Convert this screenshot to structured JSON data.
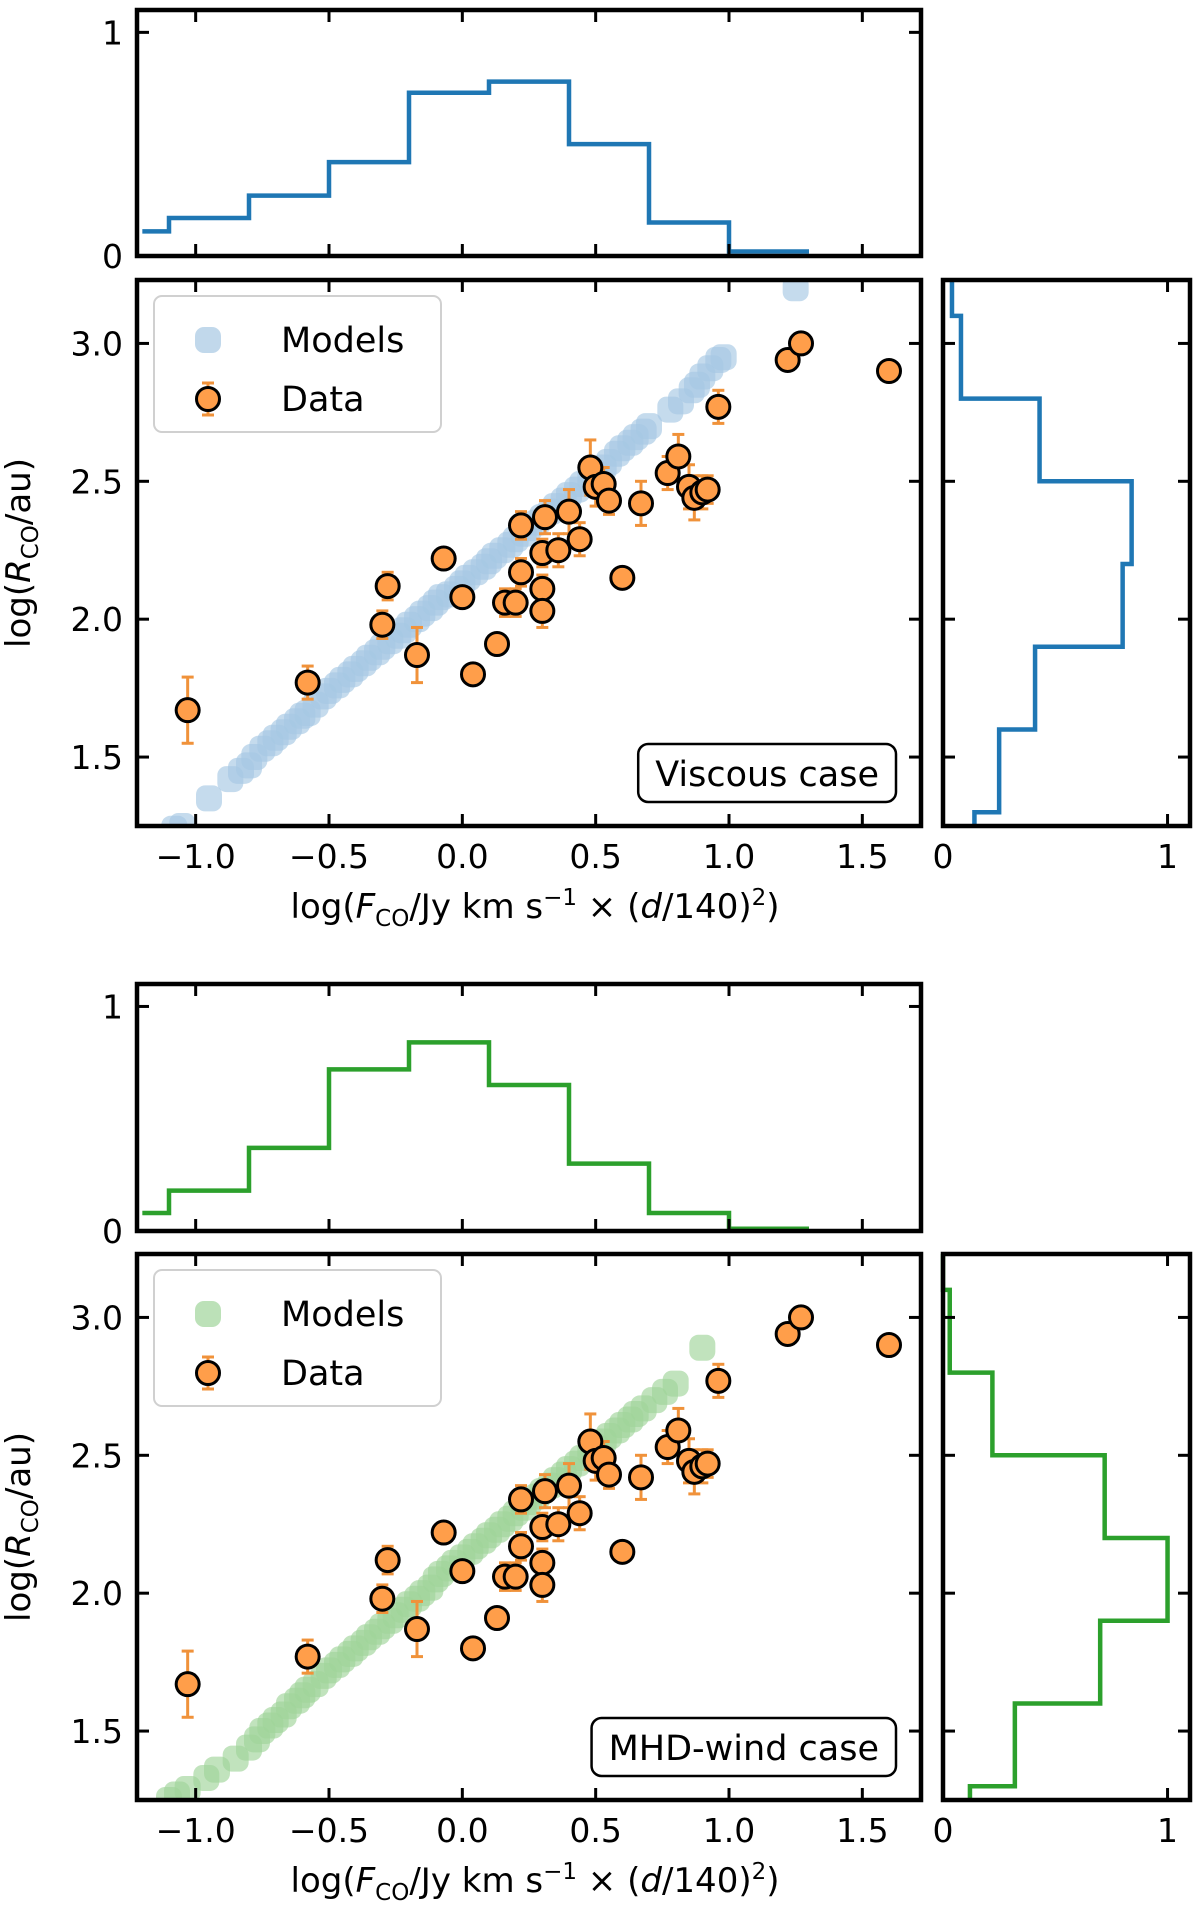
{
  "figure": {
    "xlabel": "log(F_CO/Jy km s^-1 × (d/140)^2)",
    "ylabel": "log(R_CO/au)",
    "x_ticks": [
      "−1.0",
      "−0.5",
      "0.0",
      "0.5",
      "1.0",
      "1.5"
    ],
    "y_ticks": [
      "1.5",
      "2.0",
      "2.5",
      "3.0"
    ],
    "hist_x_ticks": [
      "0",
      "1"
    ],
    "hist_y_ticks": [
      "0",
      "1"
    ]
  },
  "chart_data": [
    {
      "type": "scatter",
      "panel": "viscous",
      "title": "Viscous case",
      "color": "#1f77b4",
      "models_color": "#a6c8e3",
      "data_color": "#ff9e4a",
      "errbar_color": "#f0923a",
      "legend": [
        "Models",
        "Data"
      ],
      "xlim": [
        -1.22,
        1.72
      ],
      "ylim": [
        1.25,
        3.23
      ],
      "models": {
        "x": [
          -1.08,
          -1.05,
          -0.95,
          -0.87,
          -0.83,
          -0.8,
          -0.78,
          -0.75,
          -0.72,
          -0.7,
          -0.67,
          -0.65,
          -0.62,
          -0.6,
          -0.58,
          -0.55,
          -0.52,
          -0.5,
          -0.47,
          -0.45,
          -0.42,
          -0.4,
          -0.37,
          -0.35,
          -0.32,
          -0.3,
          -0.27,
          -0.24,
          -0.22,
          -0.2,
          -0.17,
          -0.15,
          -0.12,
          -0.1,
          -0.08,
          -0.05,
          -0.02,
          0.0,
          0.02,
          0.05,
          0.08,
          0.1,
          0.12,
          0.15,
          0.18,
          0.2,
          0.23,
          0.25,
          0.28,
          0.3,
          0.33,
          0.35,
          0.38,
          0.4,
          0.43,
          0.45,
          0.48,
          0.5,
          0.53,
          0.55,
          0.58,
          0.6,
          0.63,
          0.65,
          0.68,
          0.7,
          0.78,
          0.82,
          0.86,
          0.88,
          0.9,
          0.93,
          0.96,
          0.98,
          1.25
        ],
        "y": [
          1.24,
          1.25,
          1.35,
          1.42,
          1.45,
          1.47,
          1.5,
          1.53,
          1.55,
          1.57,
          1.59,
          1.61,
          1.63,
          1.65,
          1.66,
          1.69,
          1.72,
          1.74,
          1.76,
          1.78,
          1.8,
          1.82,
          1.84,
          1.86,
          1.88,
          1.9,
          1.92,
          1.94,
          1.96,
          1.98,
          2.0,
          2.02,
          2.04,
          2.06,
          2.08,
          2.09,
          2.11,
          2.13,
          2.15,
          2.17,
          2.19,
          2.21,
          2.23,
          2.25,
          2.27,
          2.29,
          2.31,
          2.33,
          2.35,
          2.37,
          2.39,
          2.41,
          2.43,
          2.45,
          2.47,
          2.49,
          2.51,
          2.53,
          2.55,
          2.57,
          2.6,
          2.62,
          2.64,
          2.66,
          2.68,
          2.7,
          2.76,
          2.79,
          2.83,
          2.85,
          2.88,
          2.91,
          2.94,
          2.95,
          3.2
        ]
      },
      "data": {
        "x": [
          -1.03,
          -0.58,
          -0.3,
          -0.28,
          -0.17,
          -0.07,
          0.04,
          0.0,
          0.13,
          0.16,
          0.2,
          0.22,
          0.22,
          0.3,
          0.3,
          0.3,
          0.31,
          0.36,
          0.4,
          0.44,
          0.48,
          0.5,
          0.53,
          0.55,
          0.6,
          0.67,
          0.77,
          0.81,
          0.85,
          0.87,
          0.9,
          0.92,
          0.96,
          1.22,
          1.27,
          1.6
        ],
        "y": [
          1.67,
          1.77,
          1.98,
          2.12,
          1.87,
          2.22,
          1.8,
          2.08,
          1.91,
          2.06,
          2.06,
          2.17,
          2.34,
          2.11,
          2.03,
          2.24,
          2.37,
          2.25,
          2.39,
          2.29,
          2.55,
          2.48,
          2.49,
          2.43,
          2.15,
          2.42,
          2.53,
          2.59,
          2.48,
          2.44,
          2.46,
          2.47,
          2.77,
          2.94,
          3.0,
          2.9
        ],
        "yerr": [
          0.12,
          0.06,
          0.05,
          0.05,
          0.1,
          0.03,
          0.03,
          0.03,
          0.03,
          0.05,
          0.05,
          0.05,
          0.05,
          0.05,
          0.06,
          0.05,
          0.06,
          0.06,
          0.08,
          0.06,
          0.1,
          0.07,
          0.06,
          0.05,
          0.03,
          0.08,
          0.06,
          0.08,
          0.08,
          0.08,
          0.06,
          0.05,
          0.06,
          0.0,
          0.0,
          0.0
        ]
      },
      "hist_x": {
        "bin_edges": [
          -1.2,
          -1.1,
          -0.8,
          -0.5,
          -0.2,
          0.1,
          0.4,
          0.7,
          1.0,
          1.3
        ],
        "values": [
          0.11,
          0.17,
          0.27,
          0.42,
          0.73,
          0.78,
          0.5,
          0.15,
          0.02
        ],
        "xlim": [
          -1.22,
          1.72
        ],
        "ylim": [
          0,
          1.1
        ]
      },
      "hist_y": {
        "bin_edges": [
          1.25,
          1.3,
          1.6,
          1.9,
          2.2,
          2.5,
          2.8,
          3.1,
          3.23
        ],
        "values": [
          0.14,
          0.25,
          0.41,
          0.8,
          0.84,
          0.43,
          0.08,
          0.04
        ],
        "xlim": [
          0,
          1.1
        ],
        "ylim": [
          1.25,
          3.23
        ]
      }
    },
    {
      "type": "scatter",
      "panel": "mhd-wind",
      "title": "MHD-wind case",
      "color": "#2ca02c",
      "models_color": "#9fd49a",
      "data_color": "#ff9e4a",
      "errbar_color": "#f0923a",
      "legend": [
        "Models",
        "Data"
      ],
      "xlim": [
        -1.22,
        1.72
      ],
      "ylim": [
        1.25,
        3.23
      ],
      "models": {
        "x": [
          -1.1,
          -1.07,
          -1.03,
          -0.96,
          -0.92,
          -0.85,
          -0.8,
          -0.77,
          -0.75,
          -0.72,
          -0.7,
          -0.67,
          -0.65,
          -0.62,
          -0.6,
          -0.58,
          -0.55,
          -0.52,
          -0.5,
          -0.47,
          -0.45,
          -0.42,
          -0.4,
          -0.37,
          -0.35,
          -0.32,
          -0.3,
          -0.27,
          -0.25,
          -0.22,
          -0.2,
          -0.17,
          -0.15,
          -0.12,
          -0.1,
          -0.08,
          -0.05,
          -0.03,
          0.0,
          0.03,
          0.05,
          0.08,
          0.1,
          0.13,
          0.15,
          0.18,
          0.2,
          0.23,
          0.25,
          0.28,
          0.3,
          0.33,
          0.35,
          0.38,
          0.4,
          0.43,
          0.45,
          0.48,
          0.5,
          0.53,
          0.55,
          0.58,
          0.6,
          0.63,
          0.65,
          0.68,
          0.72,
          0.76,
          0.8,
          0.9
        ],
        "y": [
          1.25,
          1.27,
          1.29,
          1.33,
          1.36,
          1.4,
          1.44,
          1.47,
          1.5,
          1.52,
          1.54,
          1.56,
          1.59,
          1.61,
          1.63,
          1.65,
          1.67,
          1.7,
          1.72,
          1.74,
          1.76,
          1.78,
          1.8,
          1.82,
          1.84,
          1.86,
          1.88,
          1.9,
          1.92,
          1.94,
          1.96,
          1.98,
          2.0,
          2.02,
          2.05,
          2.07,
          2.09,
          2.11,
          2.13,
          2.15,
          2.17,
          2.19,
          2.21,
          2.23,
          2.25,
          2.27,
          2.29,
          2.31,
          2.33,
          2.35,
          2.37,
          2.39,
          2.41,
          2.43,
          2.45,
          2.47,
          2.49,
          2.51,
          2.53,
          2.55,
          2.57,
          2.59,
          2.61,
          2.63,
          2.65,
          2.67,
          2.7,
          2.73,
          2.76,
          2.89
        ]
      },
      "data": {
        "x": [
          -1.03,
          -0.58,
          -0.3,
          -0.28,
          -0.17,
          -0.07,
          0.04,
          0.0,
          0.13,
          0.16,
          0.2,
          0.22,
          0.22,
          0.3,
          0.3,
          0.3,
          0.31,
          0.36,
          0.4,
          0.44,
          0.48,
          0.5,
          0.53,
          0.55,
          0.6,
          0.67,
          0.77,
          0.81,
          0.85,
          0.87,
          0.9,
          0.92,
          0.96,
          1.22,
          1.27,
          1.6
        ],
        "y": [
          1.67,
          1.77,
          1.98,
          2.12,
          1.87,
          2.22,
          1.8,
          2.08,
          1.91,
          2.06,
          2.06,
          2.17,
          2.34,
          2.11,
          2.03,
          2.24,
          2.37,
          2.25,
          2.39,
          2.29,
          2.55,
          2.48,
          2.49,
          2.43,
          2.15,
          2.42,
          2.53,
          2.59,
          2.48,
          2.44,
          2.46,
          2.47,
          2.77,
          2.94,
          3.0,
          2.9
        ],
        "yerr": [
          0.12,
          0.06,
          0.05,
          0.05,
          0.1,
          0.03,
          0.03,
          0.03,
          0.03,
          0.05,
          0.05,
          0.05,
          0.05,
          0.05,
          0.06,
          0.05,
          0.06,
          0.06,
          0.08,
          0.06,
          0.1,
          0.07,
          0.06,
          0.05,
          0.03,
          0.08,
          0.06,
          0.08,
          0.08,
          0.08,
          0.06,
          0.05,
          0.06,
          0.0,
          0.0,
          0.0
        ]
      },
      "hist_x": {
        "bin_edges": [
          -1.2,
          -1.1,
          -0.8,
          -0.5,
          -0.2,
          0.1,
          0.4,
          0.7,
          1.0,
          1.3
        ],
        "values": [
          0.08,
          0.18,
          0.37,
          0.72,
          0.84,
          0.65,
          0.3,
          0.08,
          0.01
        ],
        "xlim": [
          -1.22,
          1.72
        ],
        "ylim": [
          0,
          1.1
        ]
      },
      "hist_y": {
        "bin_edges": [
          1.25,
          1.3,
          1.6,
          1.9,
          2.2,
          2.5,
          2.8,
          3.1,
          3.23
        ],
        "values": [
          0.12,
          0.32,
          0.7,
          1.0,
          0.72,
          0.22,
          0.03,
          0.0
        ],
        "xlim": [
          0,
          1.1
        ],
        "ylim": [
          1.25,
          3.23
        ]
      }
    }
  ]
}
